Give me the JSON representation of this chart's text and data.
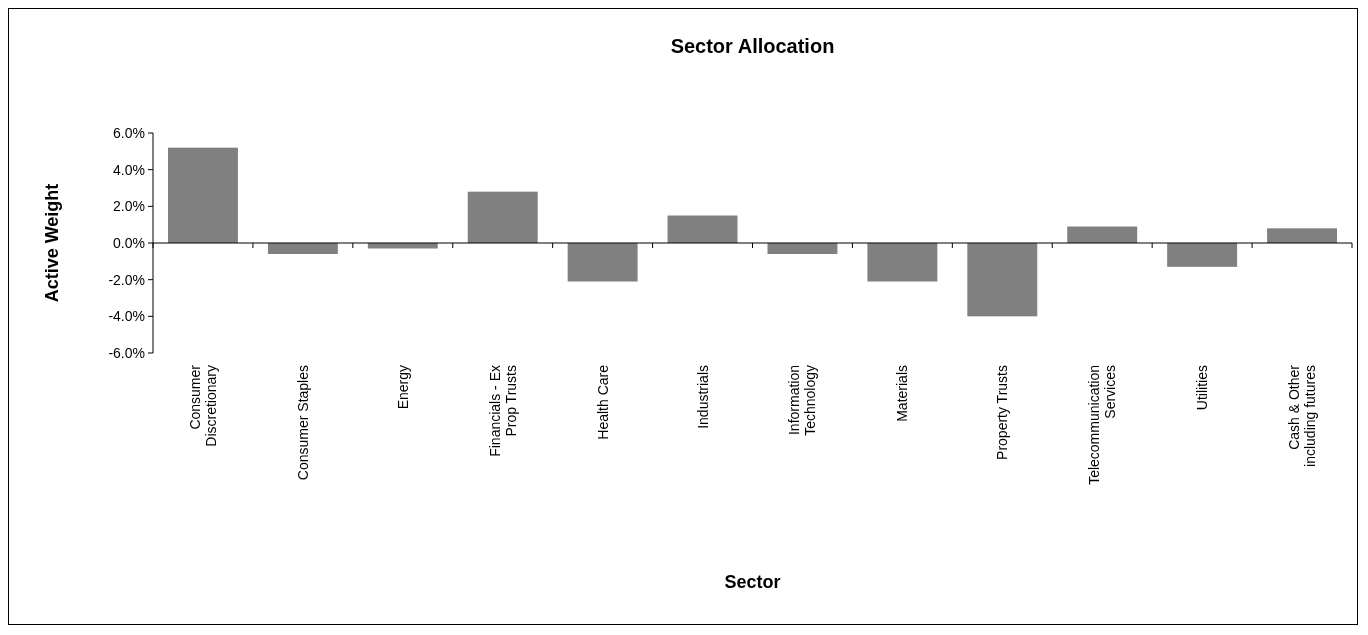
{
  "chart_data": {
    "type": "bar",
    "title": "Sector Allocation",
    "xlabel": "Sector",
    "ylabel": "Active Weight",
    "categories": [
      "Consumer Discretionary",
      "Consumer Staples",
      "Energy",
      "Financials - Ex Prop Trusts",
      "Health Care",
      "Industrials",
      "Information Technology",
      "Materials",
      "Property Trusts",
      "Telecommunication Services",
      "Utilities",
      "Cash & Other including futures"
    ],
    "values": [
      5.2,
      -0.6,
      -0.3,
      2.8,
      -2.1,
      1.5,
      -0.6,
      -2.1,
      -4.0,
      0.9,
      -1.3,
      0.8
    ],
    "color": "#808080",
    "ylim": [
      -6,
      6
    ],
    "yticks": [
      {
        "value": -6,
        "label": "-6.0%"
      },
      {
        "value": -4,
        "label": "-4.0%"
      },
      {
        "value": -2,
        "label": "-2.0%"
      },
      {
        "value": 0,
        "label": "0.0%"
      },
      {
        "value": 2,
        "label": "2.0%"
      },
      {
        "value": 4,
        "label": "4.0%"
      },
      {
        "value": 6,
        "label": "6.0%"
      }
    ],
    "legend": false
  }
}
